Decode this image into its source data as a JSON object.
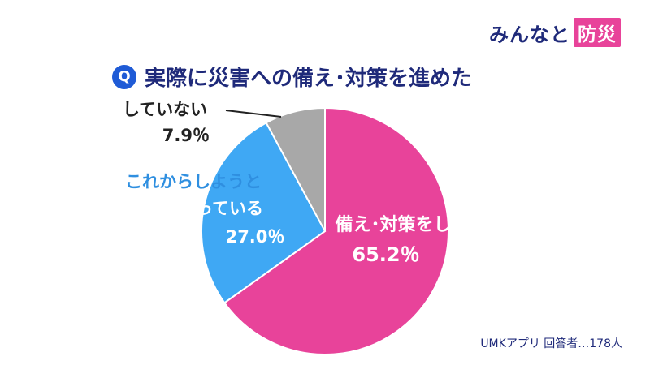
{
  "brand": {
    "name": "みんなと",
    "highlight": "防災"
  },
  "question": {
    "badge": "Q",
    "text": "実際に災害への備え･対策を進めた"
  },
  "colors": {
    "navy": "#1f2a7a",
    "pink": "#e8439a",
    "blue": "#3fa8f4",
    "gray": "#a8a8a8"
  },
  "chart_data": {
    "type": "pie",
    "title": "実際に災害への備え･対策を進めた",
    "slices": [
      {
        "label": "備え･対策をした",
        "value": 65.2,
        "value_label": "65.2％",
        "color": "#e8439a"
      },
      {
        "label": "これからしようと思っている",
        "value": 27.0,
        "value_label": "27.0％",
        "color": "#3fa8f4"
      },
      {
        "label": "していない",
        "value": 7.9,
        "value_label": "7.9％",
        "color": "#a8a8a8"
      }
    ]
  },
  "labels": {
    "pink_line1": "備え･対策をした",
    "pink_value": "65.2％",
    "blue_line1": "これからしようと",
    "blue_line2": "思っている",
    "blue_value": "27.0％",
    "gray_line1": "していない",
    "gray_value": "7.9％"
  },
  "source": "UMKアプリ 回答者…178人"
}
